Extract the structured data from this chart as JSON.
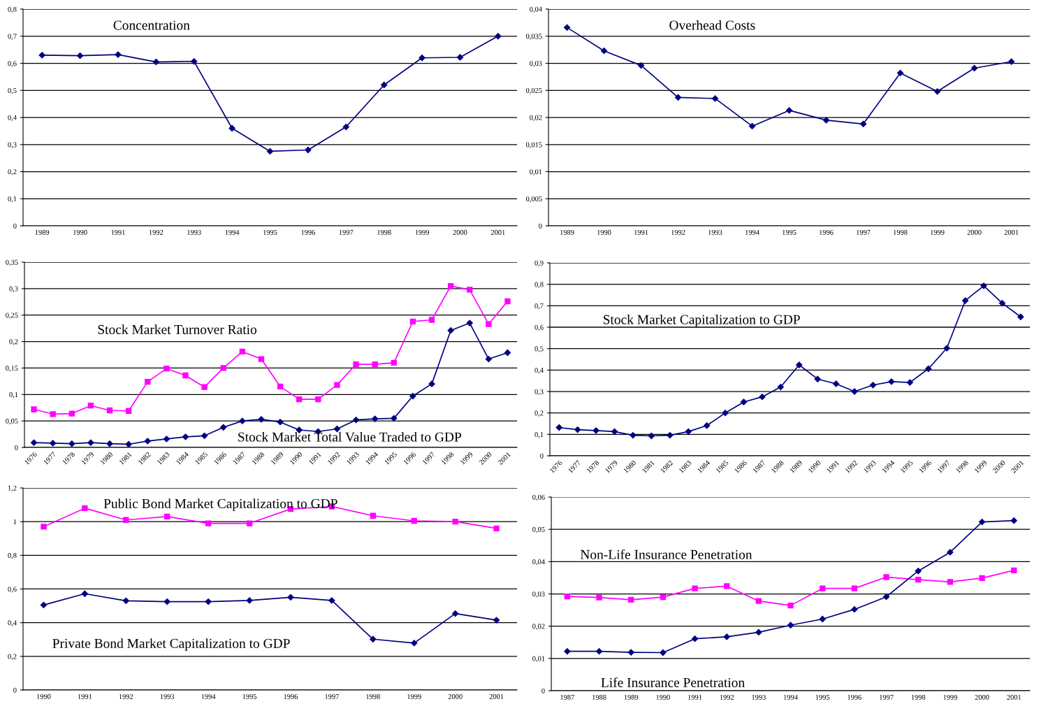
{
  "chart_data": [
    {
      "type": "line",
      "categories": [
        "1989",
        "1990",
        "1991",
        "1992",
        "1993",
        "1994",
        "1995",
        "1996",
        "1997",
        "1998",
        "1999",
        "2000",
        "2001"
      ],
      "series": [
        {
          "color": "#000080",
          "marker": "diamond",
          "values": [
            0.63,
            0.628,
            0.632,
            0.605,
            0.607,
            0.36,
            0.275,
            0.28,
            0.365,
            0.52,
            0.62,
            0.622,
            0.7
          ]
        }
      ],
      "ylim": [
        0,
        0.8
      ],
      "yticks": [
        {
          "value": 0,
          "label": "0"
        },
        {
          "value": 0.1,
          "label": "0,1"
        },
        {
          "value": 0.2,
          "label": "0,2"
        },
        {
          "value": 0.3,
          "label": "0,3"
        },
        {
          "value": 0.4,
          "label": "0,4"
        },
        {
          "value": 0.5,
          "label": "0,5"
        },
        {
          "value": 0.6,
          "label": "0,6"
        },
        {
          "value": 0.7,
          "label": "0,7"
        },
        {
          "value": 0.8,
          "label": "0,8"
        }
      ],
      "grid": "y",
      "title": "Concentration"
    },
    {
      "type": "line",
      "categories": [
        "1989",
        "1990",
        "1991",
        "1992",
        "1993",
        "1994",
        "1995",
        "1996",
        "1997",
        "1998",
        "1999",
        "2000",
        "2001"
      ],
      "series": [
        {
          "color": "#000080",
          "marker": "diamond",
          "values": [
            0.0366,
            0.0323,
            0.0296,
            0.0237,
            0.0235,
            0.0184,
            0.0213,
            0.0195,
            0.0188,
            0.0282,
            0.0248,
            0.0291,
            0.0303
          ]
        }
      ],
      "ylim": [
        0,
        0.04
      ],
      "yticks": [
        {
          "value": 0,
          "label": "0"
        },
        {
          "value": 0.005,
          "label": "0,005"
        },
        {
          "value": 0.01,
          "label": "0,01"
        },
        {
          "value": 0.015,
          "label": "0,015"
        },
        {
          "value": 0.02,
          "label": "0,02"
        },
        {
          "value": 0.025,
          "label": "0,025"
        },
        {
          "value": 0.03,
          "label": "0,03"
        },
        {
          "value": 0.035,
          "label": "0,035"
        },
        {
          "value": 0.04,
          "label": "0,04"
        }
      ],
      "grid": "y",
      "title": "Overhead Costs"
    },
    {
      "type": "line",
      "categories": [
        "1976",
        "1977",
        "1978",
        "1979",
        "1980",
        "1981",
        "1982",
        "1983",
        "1984",
        "1985",
        "1986",
        "1987",
        "1988",
        "1989",
        "1990",
        "1991",
        "1992",
        "1993",
        "1994",
        "1995",
        "1996",
        "1997",
        "1998",
        "1999",
        "2000",
        "2001"
      ],
      "series": [
        {
          "name": "Stock Market Turnover Ratio",
          "color": "#ff00ff",
          "marker": "square",
          "values": [
            0.072,
            0.063,
            0.064,
            0.079,
            0.07,
            0.069,
            0.124,
            0.149,
            0.136,
            0.114,
            0.15,
            0.181,
            0.167,
            0.115,
            0.091,
            0.091,
            0.118,
            0.157,
            0.157,
            0.16,
            0.238,
            0.241,
            0.305,
            0.298,
            0.233,
            0.276
          ]
        },
        {
          "name": "Stock Market Total Value Traded to GDP",
          "color": "#000080",
          "marker": "diamond",
          "values": [
            0.009,
            0.008,
            0.007,
            0.009,
            0.007,
            0.006,
            0.012,
            0.016,
            0.02,
            0.022,
            0.038,
            0.05,
            0.053,
            0.048,
            0.033,
            0.03,
            0.035,
            0.052,
            0.054,
            0.055,
            0.097,
            0.12,
            0.221,
            0.235,
            0.167,
            0.179
          ]
        }
      ],
      "ylim": [
        0,
        0.35
      ],
      "yticks": [
        {
          "value": 0,
          "label": "0"
        },
        {
          "value": 0.05,
          "label": "0,05"
        },
        {
          "value": 0.1,
          "label": "0,1"
        },
        {
          "value": 0.15,
          "label": "0,15"
        },
        {
          "value": 0.2,
          "label": "0,2"
        },
        {
          "value": 0.25,
          "label": "0,25"
        },
        {
          "value": 0.3,
          "label": "0,3"
        },
        {
          "value": 0.35,
          "label": "0,35"
        }
      ],
      "grid": "y"
    },
    {
      "type": "line",
      "categories": [
        "1976",
        "1977",
        "1978",
        "1979",
        "1980",
        "1981",
        "1982",
        "1983",
        "1984",
        "1985",
        "1986",
        "1987",
        "1988",
        "1989",
        "1990",
        "1991",
        "1992",
        "1993",
        "1994",
        "1995",
        "1996",
        "1997",
        "1998",
        "1999",
        "2000",
        "2001"
      ],
      "series": [
        {
          "color": "#000080",
          "marker": "diamond",
          "values": [
            0.132,
            0.122,
            0.118,
            0.113,
            0.096,
            0.093,
            0.096,
            0.113,
            0.141,
            0.2,
            0.251,
            0.275,
            0.321,
            0.424,
            0.358,
            0.336,
            0.3,
            0.33,
            0.346,
            0.342,
            0.406,
            0.502,
            0.724,
            0.793,
            0.712,
            0.648
          ]
        }
      ],
      "ylim": [
        0,
        0.9
      ],
      "yticks": [
        {
          "value": 0,
          "label": "0"
        },
        {
          "value": 0.1,
          "label": "0,1"
        },
        {
          "value": 0.2,
          "label": "0,2"
        },
        {
          "value": 0.3,
          "label": "0,3"
        },
        {
          "value": 0.4,
          "label": "0,4"
        },
        {
          "value": 0.5,
          "label": "0,5"
        },
        {
          "value": 0.6,
          "label": "0,6"
        },
        {
          "value": 0.7,
          "label": "0,7"
        },
        {
          "value": 0.8,
          "label": "0,8"
        },
        {
          "value": 0.9,
          "label": "0,9"
        }
      ],
      "grid": "y",
      "title": "Stock Market Capitalization to GDP"
    },
    {
      "type": "line",
      "categories": [
        "1990",
        "1991",
        "1992",
        "1993",
        "1994",
        "1995",
        "1996",
        "1997",
        "1998",
        "1999",
        "2000",
        "2001"
      ],
      "series": [
        {
          "name": "Public Bond Market Capitalization to GDP",
          "color": "#ff00ff",
          "marker": "square",
          "values": [
            0.97,
            1.08,
            1.01,
            1.03,
            0.99,
            0.99,
            1.075,
            1.09,
            1.035,
            1.005,
            1.0,
            0.96
          ]
        },
        {
          "name": "Private Bond Market Capitalization to GDP",
          "color": "#000080",
          "marker": "diamond",
          "values": [
            0.505,
            0.572,
            0.53,
            0.525,
            0.525,
            0.532,
            0.551,
            0.532,
            0.302,
            0.279,
            0.454,
            0.415
          ]
        }
      ],
      "ylim": [
        0,
        1.2
      ],
      "yticks": [
        {
          "value": 0,
          "label": "0"
        },
        {
          "value": 0.2,
          "label": "0,2"
        },
        {
          "value": 0.4,
          "label": "0,4"
        },
        {
          "value": 0.6,
          "label": "0,6"
        },
        {
          "value": 0.8,
          "label": "0,8"
        },
        {
          "value": 1,
          "label": "1"
        },
        {
          "value": 1.2,
          "label": "1,2"
        }
      ],
      "grid": "y"
    },
    {
      "type": "line",
      "categories": [
        "1987",
        "1988",
        "1989",
        "1990",
        "1991",
        "1992",
        "1993",
        "1994",
        "1995",
        "1996",
        "1997",
        "1998",
        "1999",
        "2000",
        "2001"
      ],
      "series": [
        {
          "name": "Non-Life Insurance Penetration",
          "color": "#ff00ff",
          "marker": "square",
          "values": [
            0.0292,
            0.0289,
            0.0282,
            0.029,
            0.0317,
            0.0324,
            0.0278,
            0.0264,
            0.0317,
            0.0317,
            0.0352,
            0.0344,
            0.0337,
            0.0349,
            0.0373
          ]
        },
        {
          "name": "Life Insurance Penetration",
          "color": "#000080",
          "marker": "diamond",
          "values": [
            0.0122,
            0.0122,
            0.0119,
            0.0118,
            0.0161,
            0.0167,
            0.0181,
            0.0203,
            0.0222,
            0.0252,
            0.0291,
            0.0371,
            0.0429,
            0.0523,
            0.0527
          ]
        }
      ],
      "ylim": [
        0,
        0.06
      ],
      "yticks": [
        {
          "value": 0,
          "label": "0"
        },
        {
          "value": 0.01,
          "label": "0,01"
        },
        {
          "value": 0.02,
          "label": "0,02"
        },
        {
          "value": 0.03,
          "label": "0,03"
        },
        {
          "value": 0.04,
          "label": "0,04"
        },
        {
          "value": 0.05,
          "label": "0,05"
        },
        {
          "value": 0.06,
          "label": "0,06"
        }
      ],
      "grid": "y"
    }
  ]
}
